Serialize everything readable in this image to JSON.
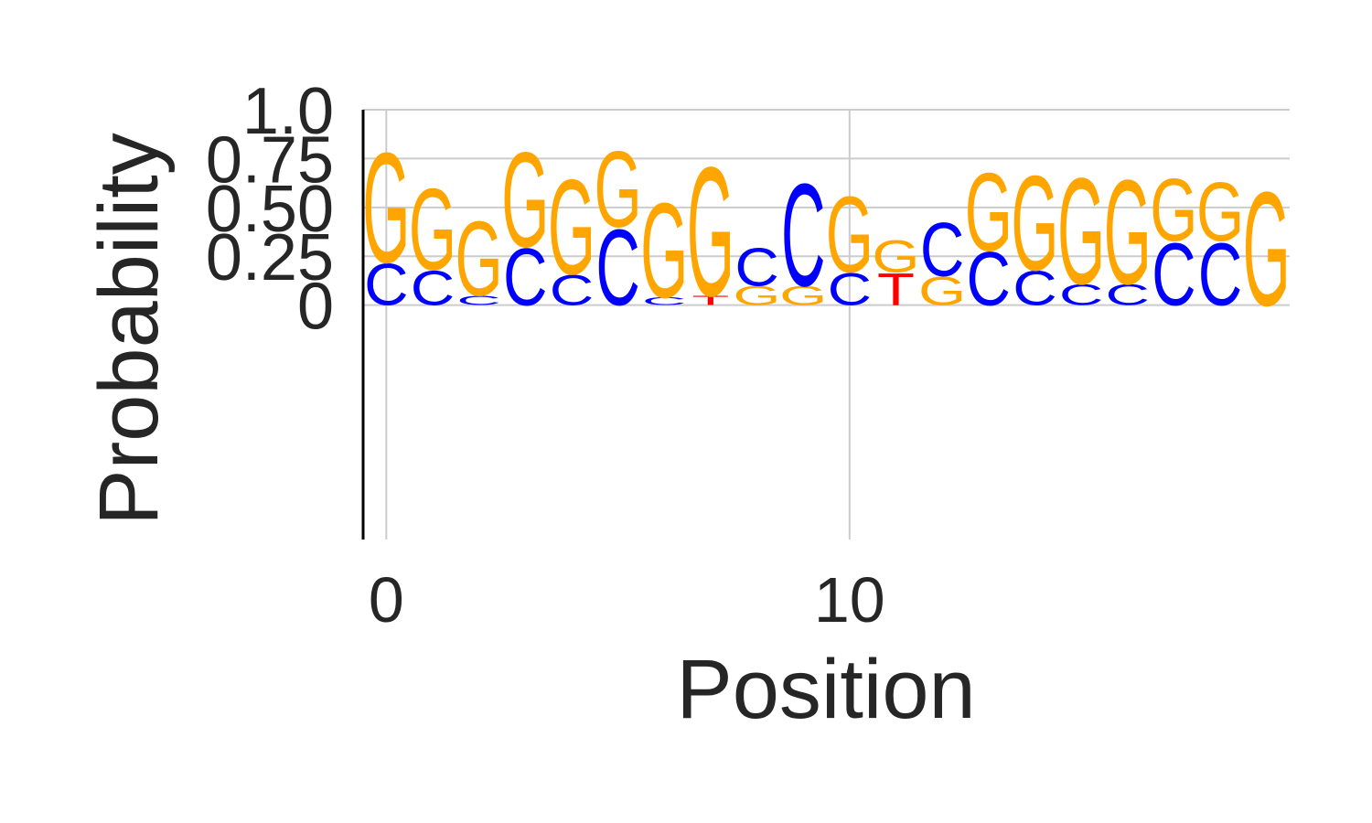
{
  "chart_data": {
    "type": "sequence-logo",
    "xlabel": "Position",
    "ylabel": "Probability",
    "xlim": [
      -0.5,
      19.5
    ],
    "ylim": [
      -1.2,
      1.0
    ],
    "x_ticks": [
      {
        "value": 0,
        "label": "0"
      },
      {
        "value": 10,
        "label": "10"
      }
    ],
    "y_ticks": [
      {
        "value": 0,
        "label": "0"
      },
      {
        "value": 0.25,
        "label": "0.25"
      },
      {
        "value": 0.5,
        "label": "0.50"
      },
      {
        "value": 0.75,
        "label": "0.75"
      },
      {
        "value": 1.0,
        "label": "1.0"
      }
    ],
    "grid": true,
    "colors": {
      "A": "#008000",
      "C": "#0000ff",
      "G": "#ffa500",
      "T": "#ff0000"
    },
    "positions": [
      {
        "pos": 0,
        "letters": [
          {
            "base": "C",
            "p": 0.22
          },
          {
            "base": "G",
            "p": 0.58
          }
        ]
      },
      {
        "pos": 1,
        "letters": [
          {
            "base": "C",
            "p": 0.18
          },
          {
            "base": "G",
            "p": 0.43
          }
        ]
      },
      {
        "pos": 2,
        "letters": [
          {
            "base": "C",
            "p": 0.05
          },
          {
            "base": "G",
            "p": 0.39
          }
        ]
      },
      {
        "pos": 3,
        "letters": [
          {
            "base": "C",
            "p": 0.3
          },
          {
            "base": "G",
            "p": 0.5
          }
        ]
      },
      {
        "pos": 4,
        "letters": [
          {
            "base": "C",
            "p": 0.16
          },
          {
            "base": "G",
            "p": 0.5
          }
        ]
      },
      {
        "pos": 5,
        "letters": [
          {
            "base": "C",
            "p": 0.4
          },
          {
            "base": "G",
            "p": 0.4
          }
        ]
      },
      {
        "pos": 6,
        "letters": [
          {
            "base": "C",
            "p": 0.04
          },
          {
            "base": "G",
            "p": 0.5
          }
        ]
      },
      {
        "pos": 7,
        "letters": [
          {
            "base": "T",
            "p": 0.05
          },
          {
            "base": "G",
            "p": 0.68
          }
        ]
      },
      {
        "pos": 8,
        "letters": [
          {
            "base": "G",
            "p": 0.1
          },
          {
            "base": "C",
            "p": 0.2
          }
        ]
      },
      {
        "pos": 9,
        "letters": [
          {
            "base": "G",
            "p": 0.1
          },
          {
            "base": "C",
            "p": 0.54
          }
        ]
      },
      {
        "pos": 10,
        "letters": [
          {
            "base": "C",
            "p": 0.17
          },
          {
            "base": "G",
            "p": 0.4
          }
        ]
      },
      {
        "pos": 11,
        "letters": [
          {
            "base": "T",
            "p": 0.17
          },
          {
            "base": "G",
            "p": 0.17
          }
        ]
      },
      {
        "pos": 12,
        "letters": [
          {
            "base": "G",
            "p": 0.15
          },
          {
            "base": "C",
            "p": 0.28
          }
        ]
      },
      {
        "pos": 13,
        "letters": [
          {
            "base": "C",
            "p": 0.28
          },
          {
            "base": "G",
            "p": 0.41
          }
        ]
      },
      {
        "pos": 14,
        "letters": [
          {
            "base": "C",
            "p": 0.18
          },
          {
            "base": "G",
            "p": 0.5
          }
        ]
      },
      {
        "pos": 15,
        "letters": [
          {
            "base": "C",
            "p": 0.11
          },
          {
            "base": "G",
            "p": 0.56
          }
        ]
      },
      {
        "pos": 16,
        "letters": [
          {
            "base": "C",
            "p": 0.11
          },
          {
            "base": "G",
            "p": 0.55
          }
        ]
      },
      {
        "pos": 17,
        "letters": [
          {
            "base": "C",
            "p": 0.33
          },
          {
            "base": "G",
            "p": 0.33
          }
        ]
      },
      {
        "pos": 18,
        "letters": [
          {
            "base": "C",
            "p": 0.33
          },
          {
            "base": "G",
            "p": 0.31
          }
        ]
      },
      {
        "pos": 19,
        "letters": [
          {
            "base": "G",
            "p": 0.6
          }
        ]
      }
    ]
  }
}
